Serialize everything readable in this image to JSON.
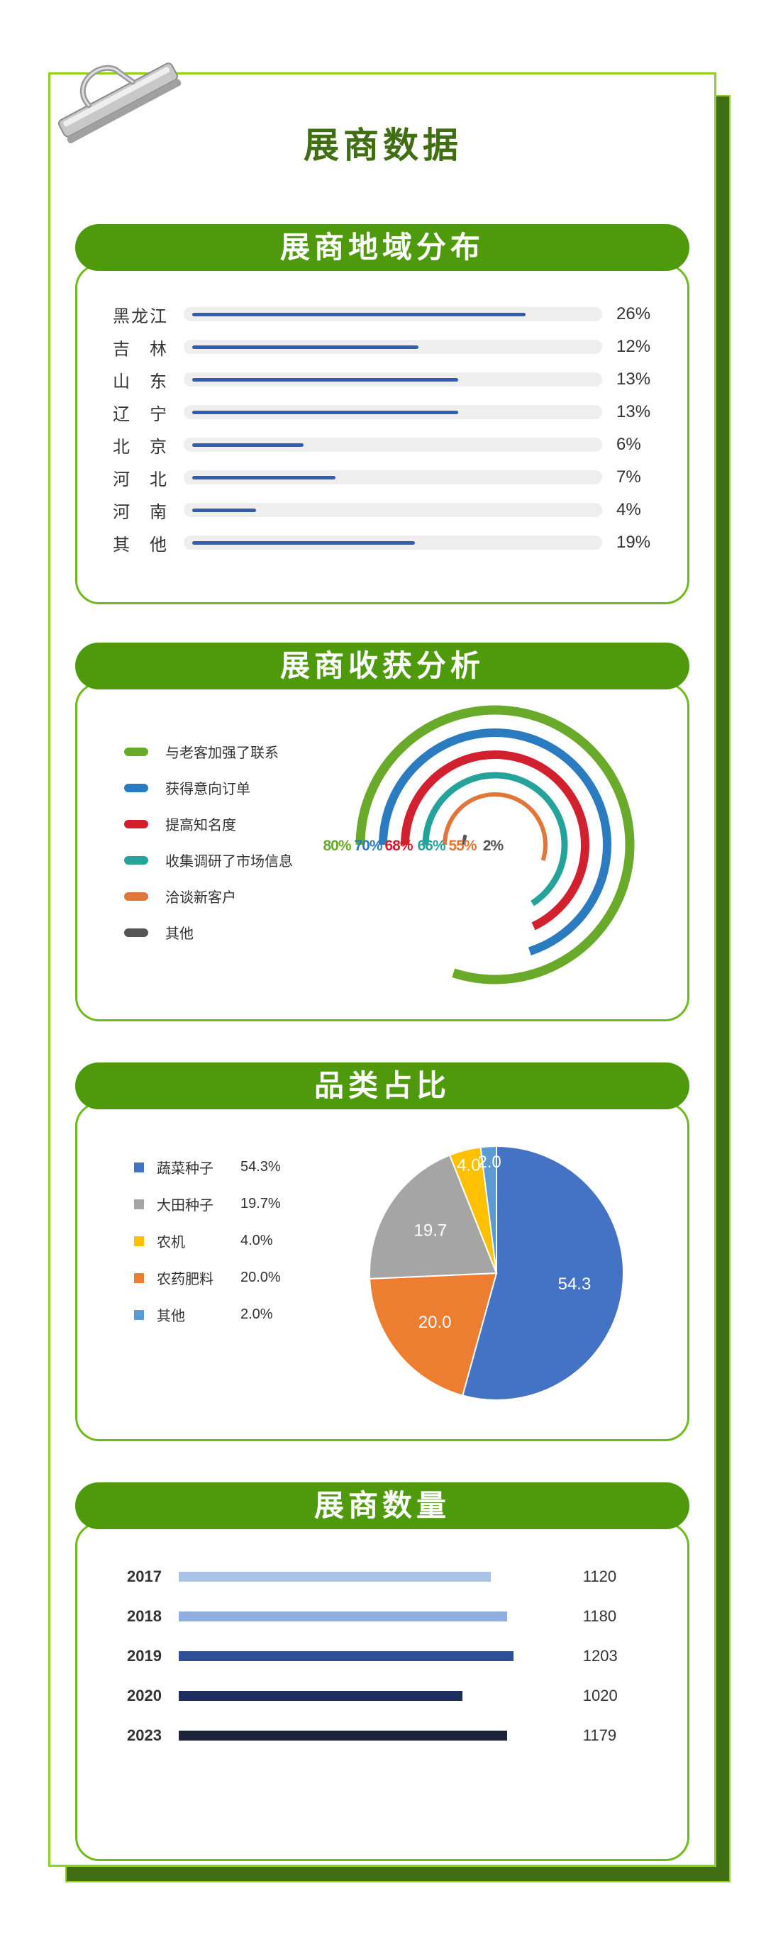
{
  "page_title": "展商数据",
  "colors": {
    "accent": "#4e9a0c",
    "lime": "#8fd21c",
    "dark_green": "#3f6e13"
  },
  "sections": {
    "region": {
      "title": "展商地域分布"
    },
    "gain": {
      "title": "展商收获分析"
    },
    "category": {
      "title": "品类占比"
    },
    "count": {
      "title": "展商数量"
    }
  },
  "chart_data": [
    {
      "type": "bar",
      "title": "展商地域分布",
      "categories": [
        "黑龙江",
        "吉　林",
        "山　东",
        "辽　宁",
        "北　京",
        "河　北",
        "河　南",
        "其　他"
      ],
      "values": [
        26,
        12,
        13,
        13,
        6,
        7,
        4,
        19
      ],
      "value_labels": [
        "26%",
        "12%",
        "13%",
        "13%",
        "6%",
        "7%",
        "4%",
        "19%"
      ],
      "bar_fraction": [
        0.84,
        0.57,
        0.67,
        0.67,
        0.28,
        0.36,
        0.16,
        0.56
      ],
      "color": "#2e5fb0"
    },
    {
      "type": "radial_bar",
      "title": "展商收获分析",
      "categories": [
        "与老客加强了联系",
        "获得意向订单",
        "提高知名度",
        "收集调研了市场信息",
        "洽谈新客户",
        "其他"
      ],
      "values": [
        80,
        70,
        68,
        66,
        55,
        2
      ],
      "value_labels": [
        "80%",
        "70%",
        "68%",
        "66%",
        "55%",
        "2%"
      ],
      "colors": [
        "#6aaa2a",
        "#2a7bbf",
        "#d3202e",
        "#25a39a",
        "#e0763a",
        "#555555"
      ]
    },
    {
      "type": "pie",
      "title": "品类占比",
      "categories": [
        "蔬菜种子",
        "大田种子",
        "农机",
        "农药肥料",
        "其他"
      ],
      "values": [
        54.3,
        19.7,
        4.0,
        20.0,
        2.0
      ],
      "legend_values": [
        "54.3%",
        "19.7%",
        "4.0%",
        "20.0%",
        "2.0%"
      ],
      "slice_labels": [
        "54.3",
        "19.7",
        "4.0",
        "20.0",
        "2.0"
      ],
      "colors": [
        "#4472c4",
        "#a5a5a5",
        "#ffc000",
        "#ed7d31",
        "#5b9bd5"
      ]
    },
    {
      "type": "bar",
      "title": "展商数量",
      "categories": [
        "2017",
        "2018",
        "2019",
        "2020",
        "2023"
      ],
      "values": [
        1120,
        1180,
        1203,
        1020,
        1179
      ],
      "value_labels": [
        "1120",
        "1180",
        "1203",
        "1020",
        "1179"
      ],
      "colors": [
        "#aac3e6",
        "#8fafe0",
        "#2e4f95",
        "#1c2d5e",
        "#1c2438"
      ]
    }
  ]
}
